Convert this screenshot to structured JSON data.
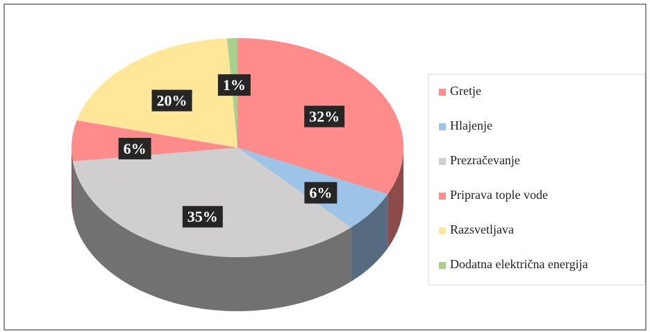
{
  "chart_data": {
    "type": "pie",
    "categories": [
      "Gretje",
      "Hlajenje",
      "Prezračevanje",
      "Priprava tople vode",
      "Razsvetljava",
      "Dodatna električna energija"
    ],
    "values": [
      32,
      6,
      35,
      6,
      20,
      1
    ],
    "value_labels": [
      "32%",
      "6%",
      "35%",
      "6%",
      "20%",
      "1%"
    ],
    "colors": [
      "#ff8b8b",
      "#9dc3e6",
      "#d0cece",
      "#ff8b8b",
      "#ffe699",
      "#a9d18e"
    ],
    "legend": "right"
  }
}
